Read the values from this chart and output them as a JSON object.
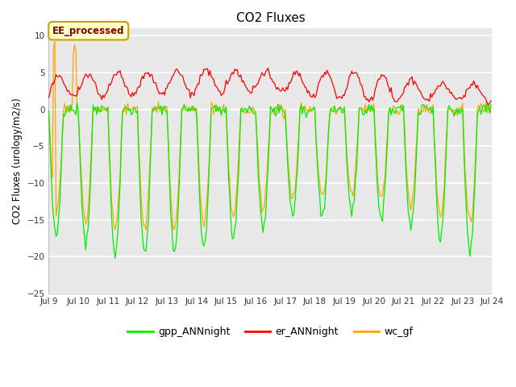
{
  "title": "CO2 Fluxes",
  "ylabel": "CO2 Fluxes (urology/m2/s)",
  "xlabel": "",
  "ylim": [
    -25,
    11
  ],
  "yticks": [
    -25,
    -20,
    -15,
    -10,
    -5,
    0,
    5,
    10
  ],
  "xlim": [
    0,
    360
  ],
  "colors": {
    "gpp": "#00ee00",
    "er": "#ff0000",
    "wc": "#ffa500"
  },
  "legend_labels": [
    "gpp_ANNnight",
    "er_ANNnight",
    "wc_gf"
  ],
  "annotation_text": "EE_processed",
  "annotation_bg": "#ffffcc",
  "annotation_border": "#c8a000",
  "annotation_text_color": "#800000",
  "plot_bg": "#e8e8e8",
  "n_days": 15,
  "points_per_day": 24,
  "xticklabels": [
    "Jul 9",
    "Jul 10",
    "Jul 11",
    "Jul 12",
    "Jul 13",
    "Jul 14",
    "Jul 15",
    "Jul 16",
    "Jul 17",
    "Jul 18",
    "Jul 19",
    "Jul 20",
    "Jul 21",
    "Jul 22",
    "Jul 23",
    "Jul 24"
  ],
  "xtick_positions": [
    0,
    24,
    48,
    72,
    96,
    120,
    144,
    168,
    192,
    216,
    240,
    264,
    288,
    312,
    336,
    360
  ]
}
